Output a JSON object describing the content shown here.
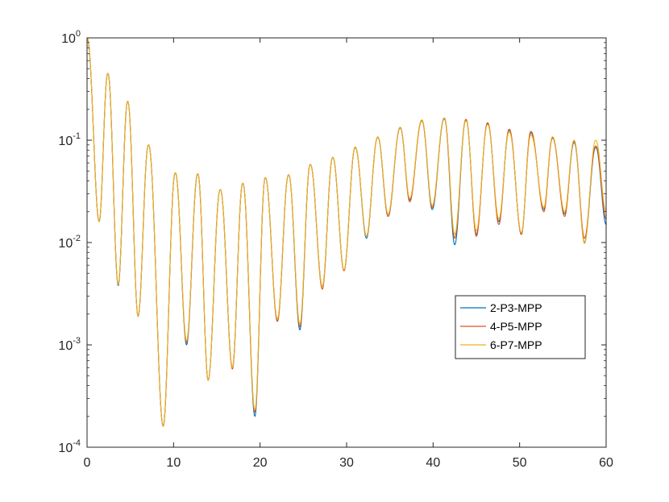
{
  "chart_data": {
    "type": "line",
    "title": "",
    "xlabel": "",
    "ylabel": "",
    "xlim": [
      0,
      60
    ],
    "ylim": [
      0.0001,
      1
    ],
    "yscale": "log",
    "grid": false,
    "legend_position": "lower-right",
    "x_ticks": [
      {
        "value": 0,
        "label": "0"
      },
      {
        "value": 10,
        "label": "10"
      },
      {
        "value": 20,
        "label": "20"
      },
      {
        "value": 30,
        "label": "30"
      },
      {
        "value": 40,
        "label": "40"
      },
      {
        "value": 50,
        "label": "50"
      },
      {
        "value": 60,
        "label": "60"
      }
    ],
    "y_ticks": [
      {
        "value": 0.0001,
        "base": "10",
        "exp": "-4"
      },
      {
        "value": 0.001,
        "base": "10",
        "exp": "-3"
      },
      {
        "value": 0.01,
        "base": "10",
        "exp": "-2"
      },
      {
        "value": 0.1,
        "base": "10",
        "exp": "-1"
      },
      {
        "value": 1,
        "base": "10",
        "exp": "0"
      }
    ],
    "series": [
      {
        "name": "2-P3-MPP",
        "color": "#0072BD",
        "minima": [
          [
            1.4,
            0.016
          ],
          [
            3.6,
            0.0038
          ],
          [
            5.9,
            0.0019
          ],
          [
            8.8,
            0.00016
          ],
          [
            11.5,
            0.001
          ],
          [
            14.0,
            0.00045
          ],
          [
            16.8,
            0.0006
          ],
          [
            19.4,
            0.0002
          ],
          [
            22.0,
            0.0017
          ],
          [
            24.6,
            0.0014
          ],
          [
            27.2,
            0.0037
          ],
          [
            29.7,
            0.0053
          ],
          [
            32.3,
            0.011
          ],
          [
            34.8,
            0.018
          ],
          [
            37.3,
            0.026
          ],
          [
            39.9,
            0.021
          ],
          [
            42.5,
            0.0095
          ],
          [
            45.0,
            0.012
          ],
          [
            47.6,
            0.016
          ],
          [
            50.2,
            0.012
          ],
          [
            52.8,
            0.021
          ],
          [
            55.2,
            0.019
          ],
          [
            57.5,
            0.01
          ],
          [
            60.0,
            0.015
          ]
        ],
        "maxima": [
          [
            0.0,
            1.0
          ],
          [
            2.4,
            0.45
          ],
          [
            4.7,
            0.24
          ],
          [
            7.1,
            0.09
          ],
          [
            10.2,
            0.048
          ],
          [
            12.8,
            0.047
          ],
          [
            15.4,
            0.033
          ],
          [
            18.0,
            0.038
          ],
          [
            20.6,
            0.043
          ],
          [
            23.3,
            0.046
          ],
          [
            25.8,
            0.058
          ],
          [
            28.4,
            0.068
          ],
          [
            31.0,
            0.085
          ],
          [
            33.6,
            0.107
          ],
          [
            36.2,
            0.132
          ],
          [
            38.7,
            0.155
          ],
          [
            41.3,
            0.162
          ],
          [
            43.8,
            0.158
          ],
          [
            46.3,
            0.146
          ],
          [
            48.8,
            0.125
          ],
          [
            51.3,
            0.118
          ],
          [
            53.8,
            0.105
          ],
          [
            56.3,
            0.095
          ],
          [
            58.8,
            0.085
          ]
        ]
      },
      {
        "name": "4-P5-MPP",
        "color": "#D95319",
        "minima": [
          [
            1.4,
            0.016
          ],
          [
            3.6,
            0.0039
          ],
          [
            5.9,
            0.0019
          ],
          [
            8.8,
            0.00016
          ],
          [
            11.5,
            0.00105
          ],
          [
            14.0,
            0.00045
          ],
          [
            16.8,
            0.00058
          ],
          [
            19.4,
            0.00022
          ],
          [
            22.0,
            0.0017
          ],
          [
            24.6,
            0.0015
          ],
          [
            27.2,
            0.0035
          ],
          [
            29.7,
            0.0053
          ],
          [
            32.3,
            0.0115
          ],
          [
            34.8,
            0.018
          ],
          [
            37.3,
            0.025
          ],
          [
            39.9,
            0.022
          ],
          [
            42.5,
            0.011
          ],
          [
            45.0,
            0.0115
          ],
          [
            47.6,
            0.015
          ],
          [
            50.2,
            0.012
          ],
          [
            52.8,
            0.02
          ],
          [
            55.2,
            0.018
          ],
          [
            57.5,
            0.011
          ],
          [
            60.0,
            0.017
          ]
        ],
        "maxima": [
          [
            0.0,
            1.0
          ],
          [
            2.4,
            0.45
          ],
          [
            4.7,
            0.24
          ],
          [
            7.1,
            0.09
          ],
          [
            10.2,
            0.048
          ],
          [
            12.8,
            0.047
          ],
          [
            15.4,
            0.033
          ],
          [
            18.0,
            0.038
          ],
          [
            20.6,
            0.043
          ],
          [
            23.3,
            0.046
          ],
          [
            25.8,
            0.058
          ],
          [
            28.4,
            0.068
          ],
          [
            31.0,
            0.085
          ],
          [
            33.6,
            0.107
          ],
          [
            36.2,
            0.132
          ],
          [
            38.7,
            0.155
          ],
          [
            41.3,
            0.165
          ],
          [
            43.8,
            0.16
          ],
          [
            46.3,
            0.148
          ],
          [
            48.8,
            0.128
          ],
          [
            51.3,
            0.122
          ],
          [
            53.8,
            0.106
          ],
          [
            56.3,
            0.098
          ],
          [
            58.8,
            0.088
          ]
        ]
      },
      {
        "name": "6-P7-MPP",
        "color": "#EDB120",
        "minima": [
          [
            1.4,
            0.016
          ],
          [
            3.6,
            0.0039
          ],
          [
            5.9,
            0.0019
          ],
          [
            8.8,
            0.00016
          ],
          [
            11.5,
            0.0011
          ],
          [
            14.0,
            0.00045
          ],
          [
            16.8,
            0.0006
          ],
          [
            19.4,
            0.00023
          ],
          [
            22.0,
            0.0018
          ],
          [
            24.6,
            0.0016
          ],
          [
            27.2,
            0.0037
          ],
          [
            29.7,
            0.0054
          ],
          [
            32.3,
            0.0115
          ],
          [
            34.8,
            0.019
          ],
          [
            37.3,
            0.027
          ],
          [
            39.9,
            0.023
          ],
          [
            42.5,
            0.012
          ],
          [
            45.0,
            0.013
          ],
          [
            47.6,
            0.017
          ],
          [
            50.2,
            0.0125
          ],
          [
            52.8,
            0.022
          ],
          [
            55.2,
            0.02
          ],
          [
            57.5,
            0.0098
          ],
          [
            60.0,
            0.02
          ]
        ],
        "maxima": [
          [
            0.0,
            1.0
          ],
          [
            2.4,
            0.45
          ],
          [
            4.7,
            0.24
          ],
          [
            7.1,
            0.09
          ],
          [
            10.2,
            0.048
          ],
          [
            12.8,
            0.047
          ],
          [
            15.4,
            0.033
          ],
          [
            18.0,
            0.038
          ],
          [
            20.6,
            0.043
          ],
          [
            23.3,
            0.046
          ],
          [
            25.8,
            0.058
          ],
          [
            28.4,
            0.068
          ],
          [
            31.0,
            0.086
          ],
          [
            33.6,
            0.108
          ],
          [
            36.2,
            0.134
          ],
          [
            38.7,
            0.158
          ],
          [
            41.3,
            0.165
          ],
          [
            43.8,
            0.155
          ],
          [
            46.3,
            0.142
          ],
          [
            48.8,
            0.12
          ],
          [
            51.3,
            0.112
          ],
          [
            53.8,
            0.108
          ],
          [
            56.3,
            0.1
          ],
          [
            58.8,
            0.1
          ]
        ]
      }
    ]
  }
}
